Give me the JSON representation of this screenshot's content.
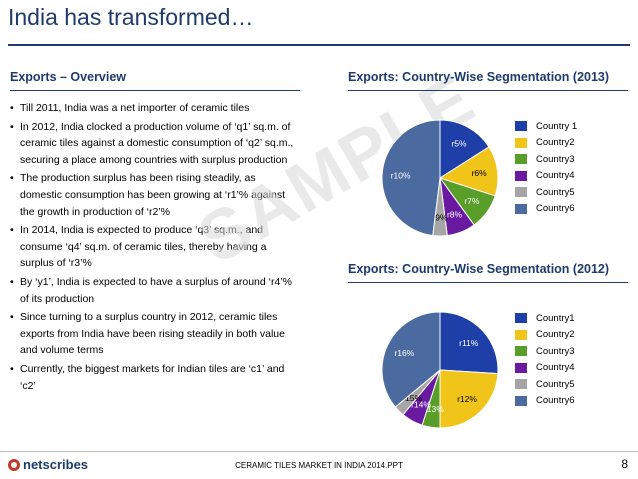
{
  "title": "India has transformed…",
  "left_section": {
    "heading": "Exports – Overview",
    "bullets": [
      "Till 2011, India was a net importer of ceramic tiles",
      "In 2012, India clocked a production volume of ‘q1’ sq.m. of ceramic tiles against a domestic consumption of ‘q2’ sq.m., securing a place among countries with surplus production",
      "The production surplus has been rising steadily, as domestic consumption has been growing at ‘r1’% against the growth in production of ‘r2’%",
      "In 2014, India is expected to produce ‘q3’ sq.m., and consume ‘q4’ sq.m. of ceramic tiles, thereby having a surplus of ‘r3’%",
      "By ‘y1’, India is expected to have a surplus of around ‘r4’% of its production",
      "Since turning to a surplus country in 2012, ceramic tiles exports from India have been rising steadily in both value and volume terms",
      "Currently, the biggest markets for Indian tiles are ‘c1’ and ‘c2’"
    ]
  },
  "chart_data": [
    {
      "type": "pie",
      "title": "Exports: Country-Wise Segmentation (2013)",
      "categories": [
        "Country 1",
        "Country2",
        "Country3",
        "Country4",
        "Country5",
        "Country6"
      ],
      "labels": [
        "r5%",
        "r6%",
        "r7%",
        "r8%",
        "r9%",
        "r10%"
      ],
      "values": [
        16,
        14,
        10,
        8,
        4,
        48
      ],
      "colors": [
        "#1f3fa8",
        "#f0c419",
        "#5a9e2a",
        "#6a1aa0",
        "#a6a6a6",
        "#4a6aa0"
      ],
      "legend": "right"
    },
    {
      "type": "pie",
      "title": "Exports: Country-Wise Segmentation (2012)",
      "categories": [
        "Country1",
        "Country2",
        "Country3",
        "Country4",
        "Country5",
        "Country6"
      ],
      "labels": [
        "r11%",
        "r12%",
        "r13%",
        "r14%",
        "r15%",
        "r16%"
      ],
      "values": [
        26,
        24,
        5,
        6,
        3,
        36
      ],
      "colors": [
        "#1f3fa8",
        "#f0c419",
        "#5a9e2a",
        "#6a1aa0",
        "#a6a6a6",
        "#4a6aa0"
      ],
      "legend": "right"
    }
  ],
  "watermark": "SAMPLE",
  "footer": {
    "logo_text": "netscribes",
    "center_text": "CERAMIC TILES MARKET IN INDIA 2014.PPT",
    "page_number": "8"
  }
}
